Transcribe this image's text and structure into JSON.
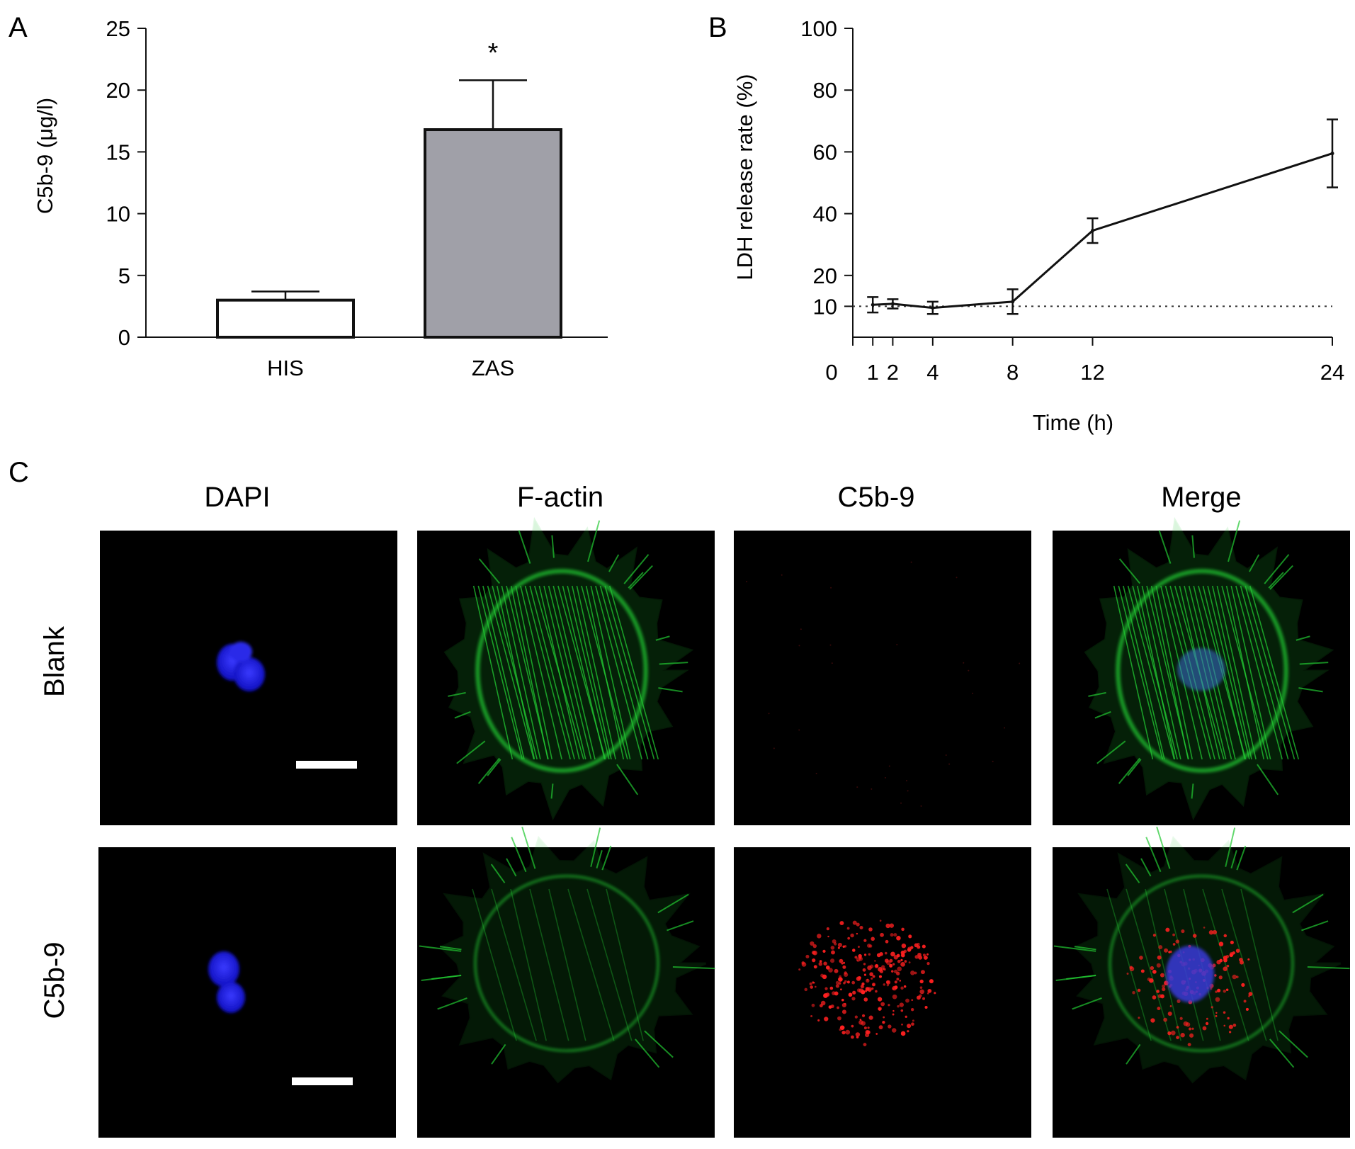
{
  "panels": {
    "a": "A",
    "b": "B",
    "c": "C"
  },
  "chart_data": [
    {
      "panel": "A",
      "type": "bar",
      "categories": [
        "HIS",
        "ZAS"
      ],
      "values": [
        3.0,
        16.8
      ],
      "errors": [
        0.7,
        4.0
      ],
      "colors": [
        "#ffffff",
        "#a0a0a8"
      ],
      "annotations": [
        {
          "category": "ZAS",
          "text": "*"
        }
      ],
      "title": "",
      "xlabel": "",
      "ylabel": "C5b-9 (μg/l)",
      "ylim": [
        0,
        25
      ],
      "yticks": [
        0,
        5,
        10,
        15,
        20,
        25
      ],
      "grid": false
    },
    {
      "panel": "B",
      "type": "line",
      "x": [
        1,
        2,
        4,
        8,
        12,
        24
      ],
      "y": [
        10.5,
        10.8,
        9.5,
        11.5,
        34.5,
        59.5
      ],
      "errors": [
        2.5,
        1.5,
        2.0,
        4.0,
        4.0,
        11.0
      ],
      "reference_line": {
        "y": 10,
        "style": "dotted"
      },
      "title": "",
      "xlabel": "Time (h)",
      "ylabel": "LDH release rate (%)",
      "xlim": [
        0,
        24
      ],
      "xticks": [
        "0",
        "1",
        "2",
        "4",
        "8",
        "12",
        "24"
      ],
      "ylim": [
        0,
        100
      ],
      "yticks": [
        "10",
        "20",
        "40",
        "60",
        "80",
        "100"
      ],
      "grid": false
    }
  ],
  "micrographs": {
    "columns": [
      "DAPI",
      "F-actin",
      "C5b-9",
      "Merge"
    ],
    "rows": [
      "Blank",
      "C5b-9"
    ],
    "background": "#000000",
    "nucleus_color": "#1a1aff",
    "actin_color": "#22c832",
    "complex_color": "#ff2020"
  }
}
